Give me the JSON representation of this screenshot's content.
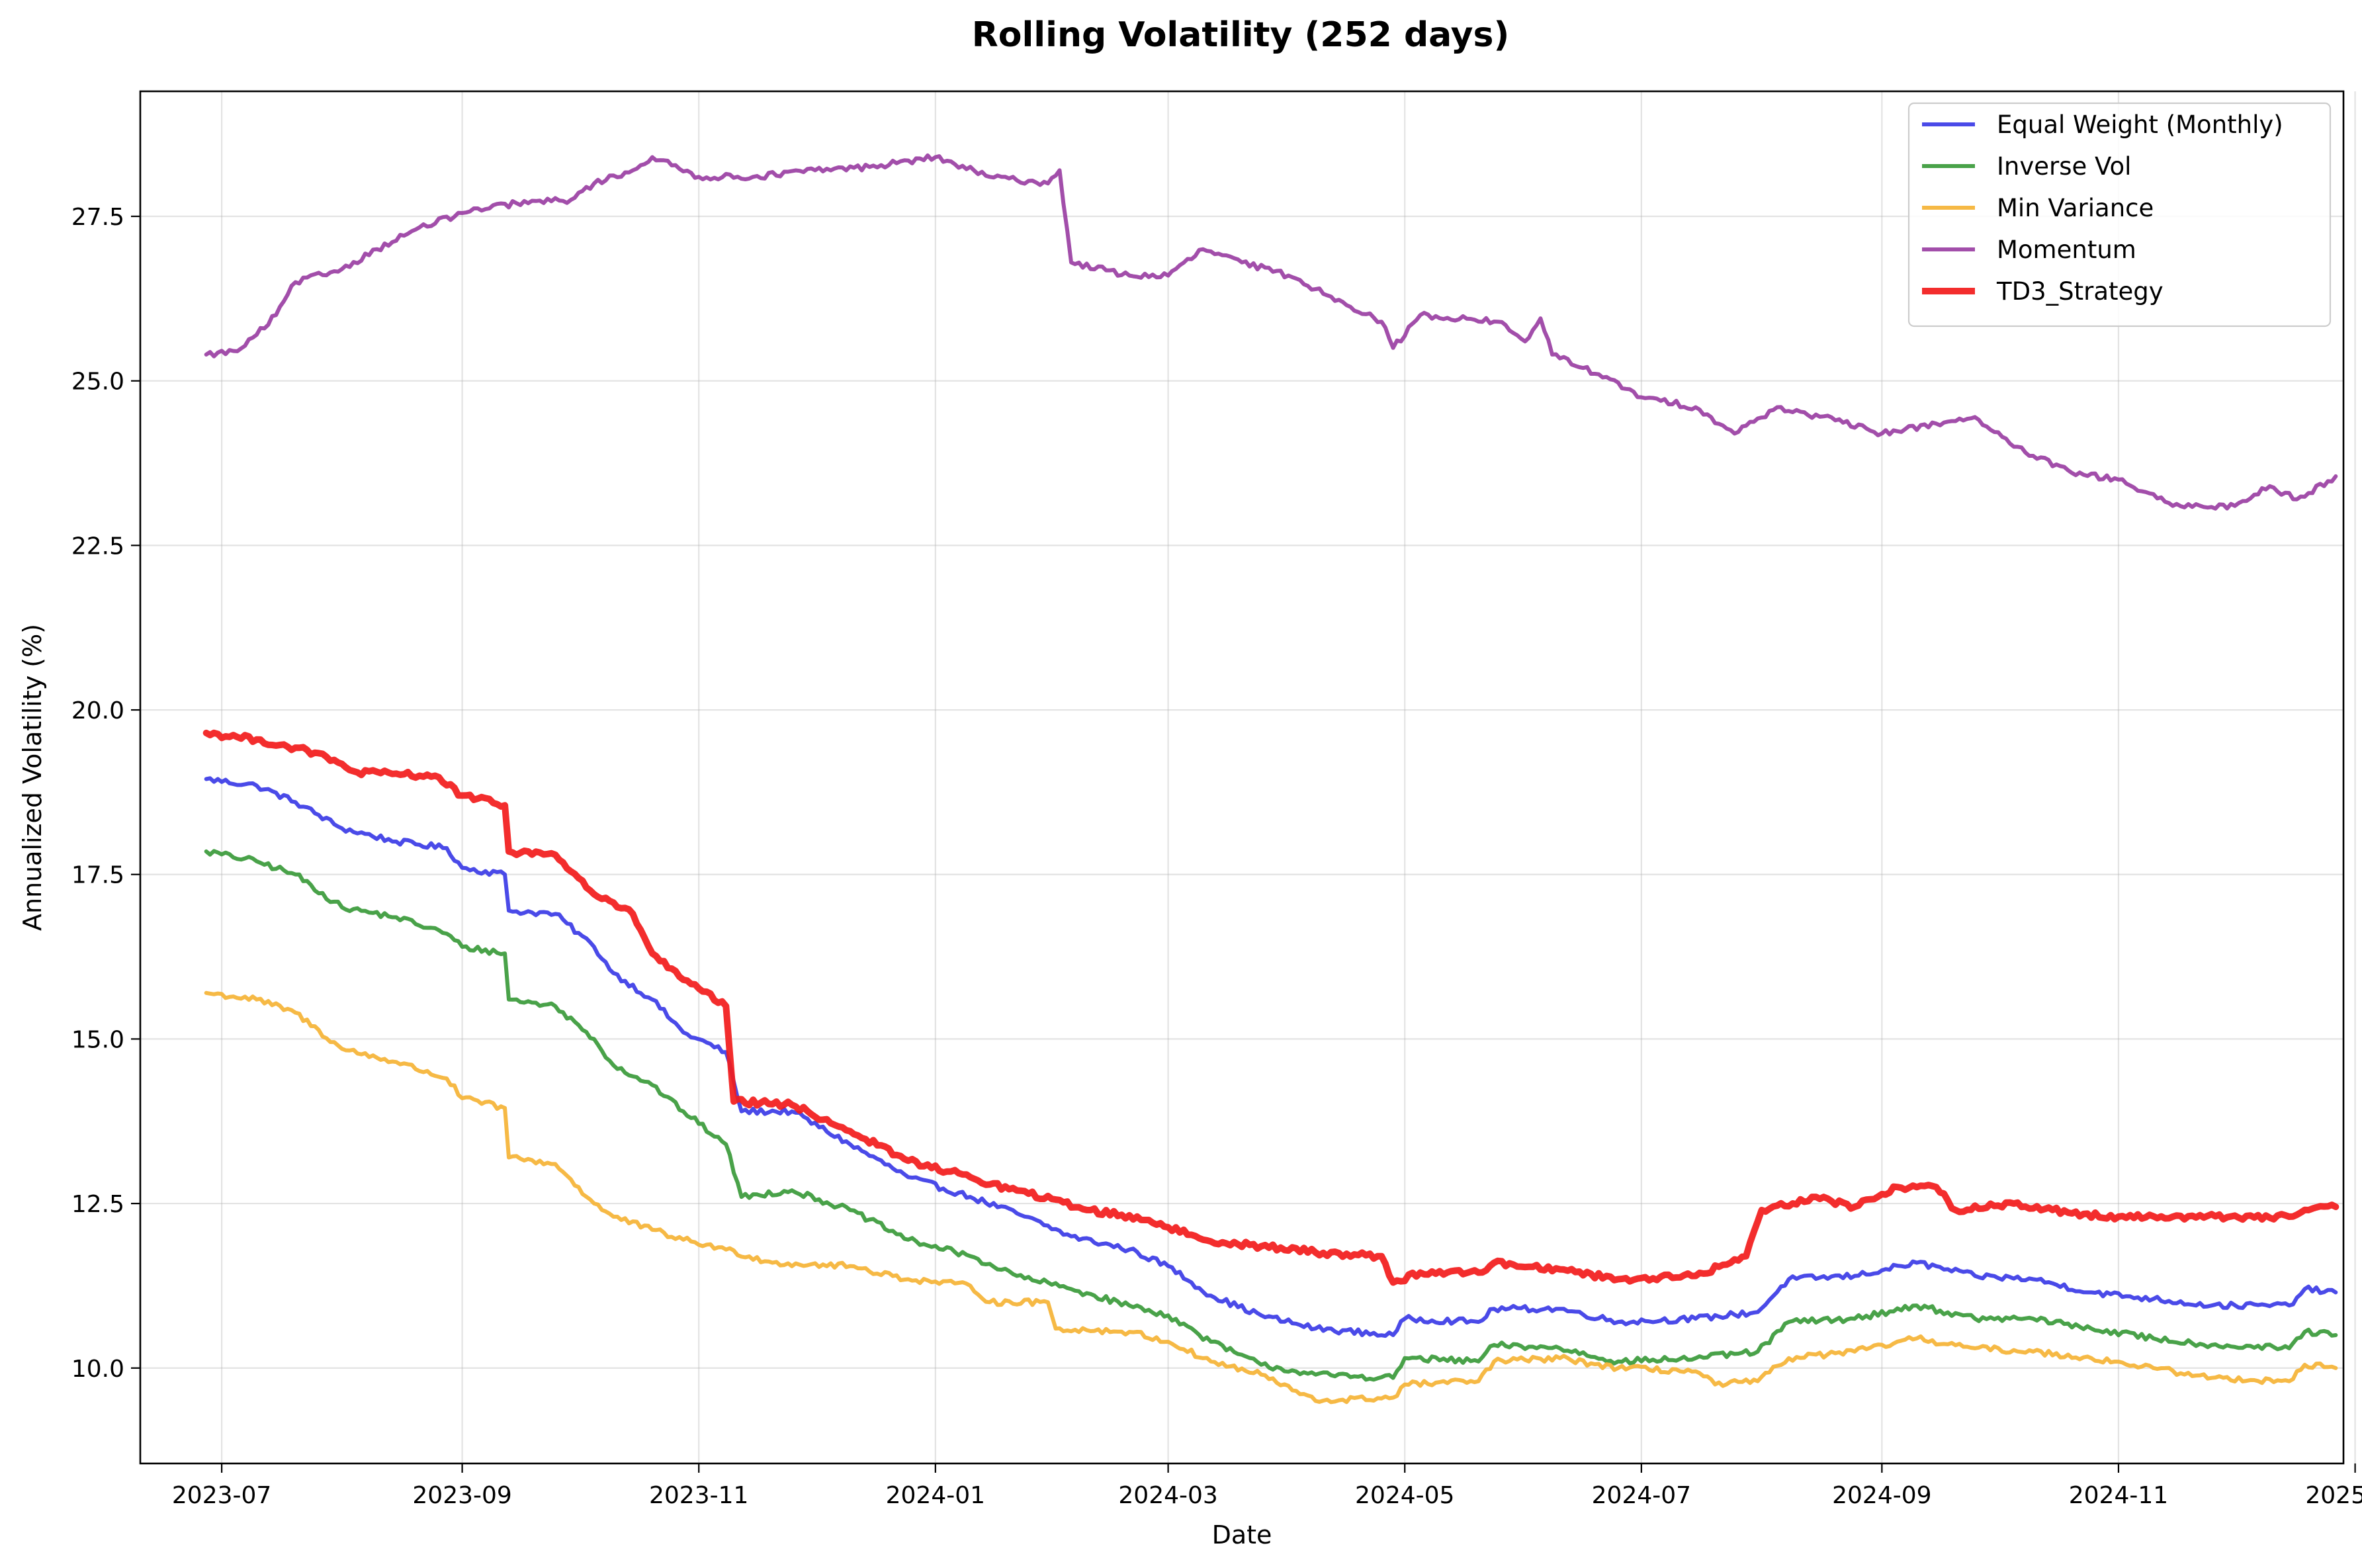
{
  "chart_data": {
    "type": "line",
    "title": "Rolling Volatility (252 days)",
    "xlabel": "Date",
    "ylabel": "Annualized Volatility (%)",
    "xlim": [
      "2023-06-10",
      "2024-12-29"
    ],
    "ylim": [
      8.55,
      29.4
    ],
    "grid": true,
    "legend_position": "top-right",
    "x_ticks": [
      "2023-07-01",
      "2023-09-01",
      "2023-11-01",
      "2024-01-01",
      "2024-03-01",
      "2024-05-01",
      "2024-07-01",
      "2024-09-01",
      "2024-11-01",
      "2025-01-01"
    ],
    "x_tick_labels": [
      "2023-07",
      "2023-09",
      "2023-11",
      "2024-01",
      "2024-03",
      "2024-05",
      "2024-07",
      "2024-09",
      "2024-11",
      "2025-01"
    ],
    "y_ticks": [
      10.0,
      12.5,
      15.0,
      17.5,
      20.0,
      22.5,
      25.0,
      27.5
    ],
    "y_tick_labels": [
      "10.0",
      "12.5",
      "15.0",
      "17.5",
      "20.0",
      "22.5",
      "25.0",
      "27.5"
    ],
    "series": [
      {
        "name": "Equal Weight (Monthly)",
        "color": "#3b3be6",
        "width": 6,
        "points": [
          [
            "2023-06-27",
            18.95
          ],
          [
            "2023-07-10",
            18.85
          ],
          [
            "2023-07-20",
            18.6
          ],
          [
            "2023-08-01",
            18.2
          ],
          [
            "2023-08-15",
            18.0
          ],
          [
            "2023-08-28",
            17.9
          ],
          [
            "2023-09-01",
            17.6
          ],
          [
            "2023-09-12",
            17.5
          ],
          [
            "2023-09-13",
            16.95
          ],
          [
            "2023-09-25",
            16.9
          ],
          [
            "2023-10-05",
            16.4
          ],
          [
            "2023-10-10",
            16.0
          ],
          [
            "2023-10-20",
            15.6
          ],
          [
            "2023-10-28",
            15.1
          ],
          [
            "2023-11-08",
            14.8
          ],
          [
            "2023-11-12",
            13.9
          ],
          [
            "2023-11-25",
            13.9
          ],
          [
            "2023-12-10",
            13.4
          ],
          [
            "2023-12-25",
            12.9
          ],
          [
            "2024-01-10",
            12.6
          ],
          [
            "2024-01-22",
            12.35
          ],
          [
            "2024-02-05",
            12.0
          ],
          [
            "2024-02-20",
            11.8
          ],
          [
            "2024-03-01",
            11.55
          ],
          [
            "2024-03-12",
            11.1
          ],
          [
            "2024-03-25",
            10.8
          ],
          [
            "2024-04-08",
            10.6
          ],
          [
            "2024-04-28",
            10.5
          ],
          [
            "2024-05-01",
            10.75
          ],
          [
            "2024-05-20",
            10.7
          ],
          [
            "2024-05-24",
            10.9
          ],
          [
            "2024-06-10",
            10.9
          ],
          [
            "2024-06-25",
            10.7
          ],
          [
            "2024-07-15",
            10.75
          ],
          [
            "2024-07-31",
            10.85
          ],
          [
            "2024-08-08",
            11.35
          ],
          [
            "2024-08-25",
            11.4
          ],
          [
            "2024-09-10",
            11.6
          ],
          [
            "2024-09-25",
            11.4
          ],
          [
            "2024-10-10",
            11.35
          ],
          [
            "2024-10-25",
            11.15
          ],
          [
            "2024-11-10",
            11.05
          ],
          [
            "2024-11-25",
            10.95
          ],
          [
            "2024-12-15",
            10.95
          ],
          [
            "2024-12-19",
            11.2
          ],
          [
            "2024-12-27",
            11.15
          ]
        ]
      },
      {
        "name": "Inverse Vol",
        "color": "#3a9a3a",
        "width": 6,
        "points": [
          [
            "2023-06-27",
            17.85
          ],
          [
            "2023-07-10",
            17.7
          ],
          [
            "2023-07-20",
            17.5
          ],
          [
            "2023-08-01",
            17.0
          ],
          [
            "2023-08-15",
            16.85
          ],
          [
            "2023-08-28",
            16.6
          ],
          [
            "2023-09-01",
            16.4
          ],
          [
            "2023-09-12",
            16.3
          ],
          [
            "2023-09-13",
            15.6
          ],
          [
            "2023-09-25",
            15.5
          ],
          [
            "2023-10-05",
            15.0
          ],
          [
            "2023-10-10",
            14.6
          ],
          [
            "2023-10-20",
            14.3
          ],
          [
            "2023-10-28",
            13.9
          ],
          [
            "2023-11-08",
            13.4
          ],
          [
            "2023-11-12",
            12.6
          ],
          [
            "2023-11-25",
            12.7
          ],
          [
            "2023-12-10",
            12.4
          ],
          [
            "2023-12-25",
            11.95
          ],
          [
            "2024-01-10",
            11.7
          ],
          [
            "2024-01-22",
            11.4
          ],
          [
            "2024-02-05",
            11.2
          ],
          [
            "2024-02-20",
            10.95
          ],
          [
            "2024-03-01",
            10.8
          ],
          [
            "2024-03-12",
            10.4
          ],
          [
            "2024-03-25",
            10.05
          ],
          [
            "2024-04-08",
            9.9
          ],
          [
            "2024-04-28",
            9.85
          ],
          [
            "2024-05-01",
            10.15
          ],
          [
            "2024-05-20",
            10.1
          ],
          [
            "2024-05-24",
            10.35
          ],
          [
            "2024-06-10",
            10.3
          ],
          [
            "2024-06-25",
            10.1
          ],
          [
            "2024-07-15",
            10.15
          ],
          [
            "2024-07-31",
            10.25
          ],
          [
            "2024-08-08",
            10.7
          ],
          [
            "2024-08-25",
            10.75
          ],
          [
            "2024-09-10",
            10.95
          ],
          [
            "2024-09-25",
            10.75
          ],
          [
            "2024-10-10",
            10.75
          ],
          [
            "2024-10-25",
            10.6
          ],
          [
            "2024-11-10",
            10.45
          ],
          [
            "2024-11-25",
            10.35
          ],
          [
            "2024-12-15",
            10.3
          ],
          [
            "2024-12-19",
            10.55
          ],
          [
            "2024-12-27",
            10.5
          ]
        ]
      },
      {
        "name": "Min Variance",
        "color": "#f5b335",
        "width": 6,
        "points": [
          [
            "2023-06-27",
            15.7
          ],
          [
            "2023-07-10",
            15.6
          ],
          [
            "2023-07-20",
            15.4
          ],
          [
            "2023-08-01",
            14.85
          ],
          [
            "2023-08-15",
            14.65
          ],
          [
            "2023-08-28",
            14.4
          ],
          [
            "2023-09-01",
            14.1
          ],
          [
            "2023-09-12",
            13.95
          ],
          [
            "2023-09-13",
            13.2
          ],
          [
            "2023-09-25",
            13.1
          ],
          [
            "2023-10-05",
            12.5
          ],
          [
            "2023-10-10",
            12.3
          ],
          [
            "2023-10-20",
            12.1
          ],
          [
            "2023-10-28",
            11.95
          ],
          [
            "2023-11-08",
            11.8
          ],
          [
            "2023-11-20",
            11.6
          ],
          [
            "2023-12-10",
            11.55
          ],
          [
            "2023-12-25",
            11.35
          ],
          [
            "2024-01-10",
            11.25
          ],
          [
            "2024-01-15",
            11.0
          ],
          [
            "2024-01-30",
            11.0
          ],
          [
            "2024-02-01",
            10.6
          ],
          [
            "2024-02-20",
            10.55
          ],
          [
            "2024-03-01",
            10.4
          ],
          [
            "2024-03-12",
            10.1
          ],
          [
            "2024-03-25",
            9.9
          ],
          [
            "2024-04-08",
            9.5
          ],
          [
            "2024-04-28",
            9.55
          ],
          [
            "2024-05-01",
            9.75
          ],
          [
            "2024-05-20",
            9.8
          ],
          [
            "2024-05-24",
            10.1
          ],
          [
            "2024-06-10",
            10.15
          ],
          [
            "2024-06-25",
            10.0
          ],
          [
            "2024-07-15",
            9.95
          ],
          [
            "2024-07-20",
            9.75
          ],
          [
            "2024-07-31",
            9.8
          ],
          [
            "2024-08-08",
            10.15
          ],
          [
            "2024-08-25",
            10.25
          ],
          [
            "2024-09-10",
            10.45
          ],
          [
            "2024-09-25",
            10.3
          ],
          [
            "2024-10-10",
            10.25
          ],
          [
            "2024-10-25",
            10.15
          ],
          [
            "2024-11-10",
            10.0
          ],
          [
            "2024-11-25",
            9.85
          ],
          [
            "2024-12-15",
            9.8
          ],
          [
            "2024-12-19",
            10.05
          ],
          [
            "2024-12-27",
            10.0
          ]
        ]
      },
      {
        "name": "Momentum",
        "color": "#9a3fa3",
        "width": 6,
        "points": [
          [
            "2023-06-27",
            25.4
          ],
          [
            "2023-07-05",
            25.45
          ],
          [
            "2023-07-10",
            25.7
          ],
          [
            "2023-07-15",
            26.0
          ],
          [
            "2023-07-20",
            26.5
          ],
          [
            "2023-08-01",
            26.7
          ],
          [
            "2023-08-10",
            27.0
          ],
          [
            "2023-08-20",
            27.3
          ],
          [
            "2023-09-01",
            27.55
          ],
          [
            "2023-09-15",
            27.7
          ],
          [
            "2023-09-29",
            27.75
          ],
          [
            "2023-10-05",
            28.0
          ],
          [
            "2023-10-15",
            28.2
          ],
          [
            "2023-10-20",
            28.4
          ],
          [
            "2023-11-01",
            28.1
          ],
          [
            "2023-11-15",
            28.1
          ],
          [
            "2023-12-01",
            28.2
          ],
          [
            "2023-12-15",
            28.25
          ],
          [
            "2024-01-01",
            28.4
          ],
          [
            "2024-01-15",
            28.1
          ],
          [
            "2024-01-30",
            28.0
          ],
          [
            "2024-02-02",
            28.2
          ],
          [
            "2024-02-05",
            26.8
          ],
          [
            "2024-02-20",
            26.6
          ],
          [
            "2024-03-01",
            26.6
          ],
          [
            "2024-03-10",
            27.0
          ],
          [
            "2024-03-20",
            26.8
          ],
          [
            "2024-04-01",
            26.6
          ],
          [
            "2024-04-15",
            26.2
          ],
          [
            "2024-04-25",
            25.9
          ],
          [
            "2024-04-28",
            25.5
          ],
          [
            "2024-05-05",
            26.0
          ],
          [
            "2024-05-25",
            25.9
          ],
          [
            "2024-06-01",
            25.6
          ],
          [
            "2024-06-05",
            25.95
          ],
          [
            "2024-06-08",
            25.4
          ],
          [
            "2024-06-20",
            25.1
          ],
          [
            "2024-07-01",
            24.75
          ],
          [
            "2024-07-15",
            24.6
          ],
          [
            "2024-07-25",
            24.2
          ],
          [
            "2024-08-05",
            24.6
          ],
          [
            "2024-08-20",
            24.4
          ],
          [
            "2024-09-01",
            24.2
          ],
          [
            "2024-09-15",
            24.35
          ],
          [
            "2024-09-25",
            24.45
          ],
          [
            "2024-10-05",
            24.0
          ],
          [
            "2024-10-20",
            23.6
          ],
          [
            "2024-11-01",
            23.5
          ],
          [
            "2024-11-15",
            23.1
          ],
          [
            "2024-12-01",
            23.1
          ],
          [
            "2024-12-10",
            23.4
          ],
          [
            "2024-12-17",
            23.2
          ],
          [
            "2024-12-27",
            23.55
          ]
        ]
      },
      {
        "name": "TD3_Strategy",
        "color": "#f21b1b",
        "width": 10,
        "points": [
          [
            "2023-06-27",
            19.65
          ],
          [
            "2023-07-10",
            19.55
          ],
          [
            "2023-07-25",
            19.35
          ],
          [
            "2023-08-05",
            19.05
          ],
          [
            "2023-08-25",
            19.0
          ],
          [
            "2023-09-01",
            18.7
          ],
          [
            "2023-09-12",
            18.55
          ],
          [
            "2023-09-13",
            17.85
          ],
          [
            "2023-09-25",
            17.8
          ],
          [
            "2023-10-05",
            17.2
          ],
          [
            "2023-10-15",
            16.9
          ],
          [
            "2023-10-20",
            16.3
          ],
          [
            "2023-10-28",
            15.9
          ],
          [
            "2023-11-08",
            15.5
          ],
          [
            "2023-11-10",
            14.05
          ],
          [
            "2023-11-25",
            14.0
          ],
          [
            "2023-12-10",
            13.6
          ],
          [
            "2023-12-25",
            13.15
          ],
          [
            "2024-01-10",
            12.9
          ],
          [
            "2024-01-12",
            12.85
          ],
          [
            "2024-01-25",
            12.65
          ],
          [
            "2024-02-10",
            12.4
          ],
          [
            "2024-02-25",
            12.25
          ],
          [
            "2024-03-10",
            11.95
          ],
          [
            "2024-03-25",
            11.85
          ],
          [
            "2024-04-10",
            11.75
          ],
          [
            "2024-04-25",
            11.7
          ],
          [
            "2024-04-28",
            11.3
          ],
          [
            "2024-05-05",
            11.45
          ],
          [
            "2024-05-20",
            11.45
          ],
          [
            "2024-05-24",
            11.6
          ],
          [
            "2024-06-10",
            11.5
          ],
          [
            "2024-06-25",
            11.35
          ],
          [
            "2024-07-15",
            11.4
          ],
          [
            "2024-07-28",
            11.7
          ],
          [
            "2024-08-01",
            12.4
          ],
          [
            "2024-08-15",
            12.6
          ],
          [
            "2024-08-25",
            12.45
          ],
          [
            "2024-09-05",
            12.75
          ],
          [
            "2024-09-15",
            12.75
          ],
          [
            "2024-09-20",
            12.4
          ],
          [
            "2024-10-05",
            12.5
          ],
          [
            "2024-10-20",
            12.35
          ],
          [
            "2024-11-01",
            12.3
          ],
          [
            "2024-11-15",
            12.3
          ],
          [
            "2024-12-15",
            12.3
          ],
          [
            "2024-12-20",
            12.4
          ],
          [
            "2024-12-27",
            12.45
          ]
        ]
      }
    ]
  }
}
